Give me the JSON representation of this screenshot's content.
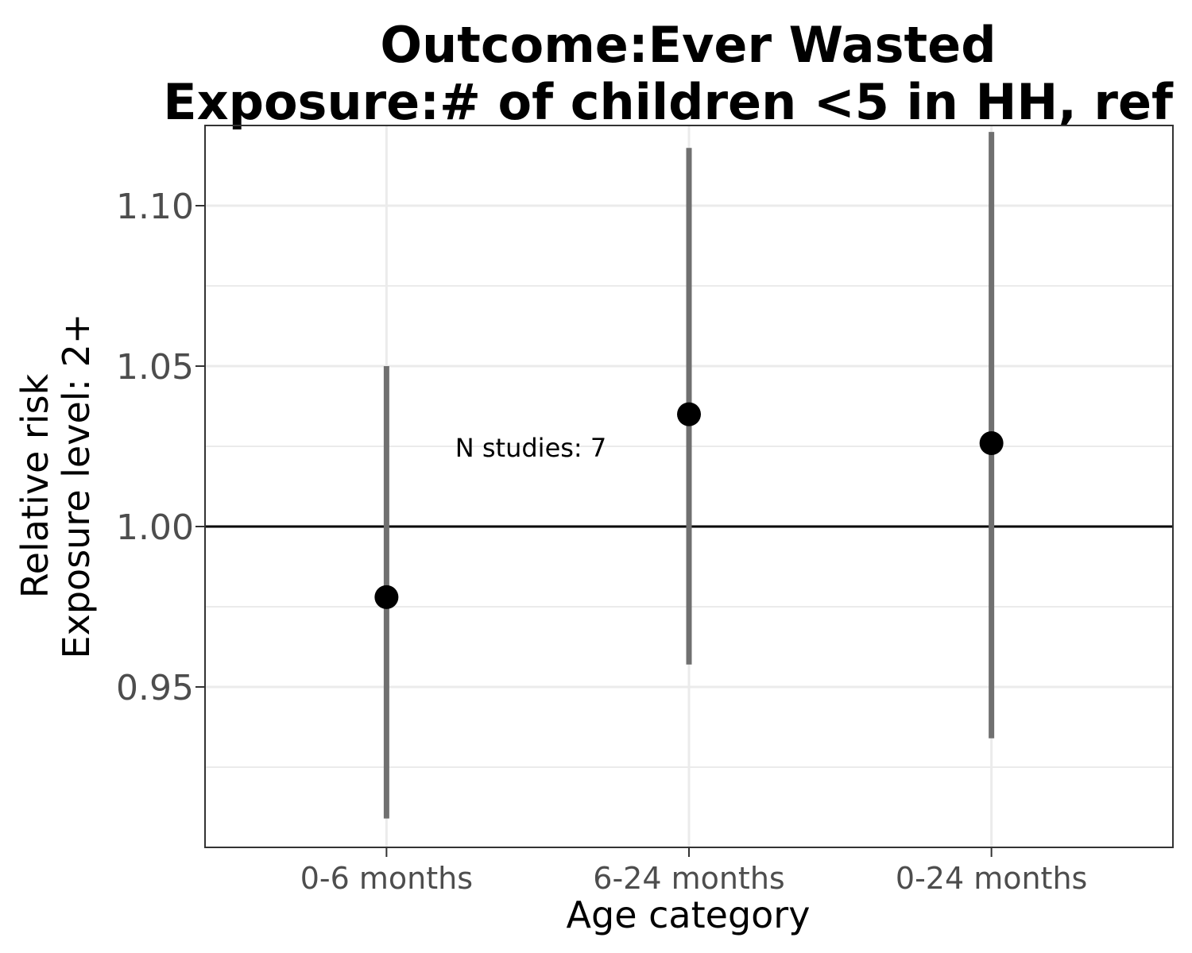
{
  "chart_data": {
    "type": "scatter",
    "title": "Outcome:Ever Wasted",
    "subtitle": "Exposure:# of children <5 in HH, ref",
    "xlabel": "Age category",
    "ylabel_line1": "Relative risk",
    "ylabel_line2": "Exposure level: 2+",
    "annotation": "N studies: 7",
    "categories": [
      "0-6 months",
      "6-24 months",
      "0-24 months"
    ],
    "series": [
      {
        "estimates": [
          0.978,
          1.035,
          1.026
        ],
        "ci_lower": [
          0.909,
          0.957,
          0.934
        ],
        "ci_upper": [
          1.05,
          1.118,
          1.123
        ]
      }
    ],
    "y_ticks": [
      0.95,
      1.0,
      1.05,
      1.1
    ],
    "y_tick_labels": [
      "0.95",
      "1.00",
      "1.05",
      "1.10"
    ],
    "ylim": [
      0.9,
      1.125
    ],
    "reference_line": 1.0,
    "grid": true,
    "legend": "none",
    "colors": {
      "point": "#000000",
      "interval": "#707070",
      "reference": "#000000",
      "grid": "#ebebeb",
      "tick_label": "#4d4d4d"
    }
  }
}
